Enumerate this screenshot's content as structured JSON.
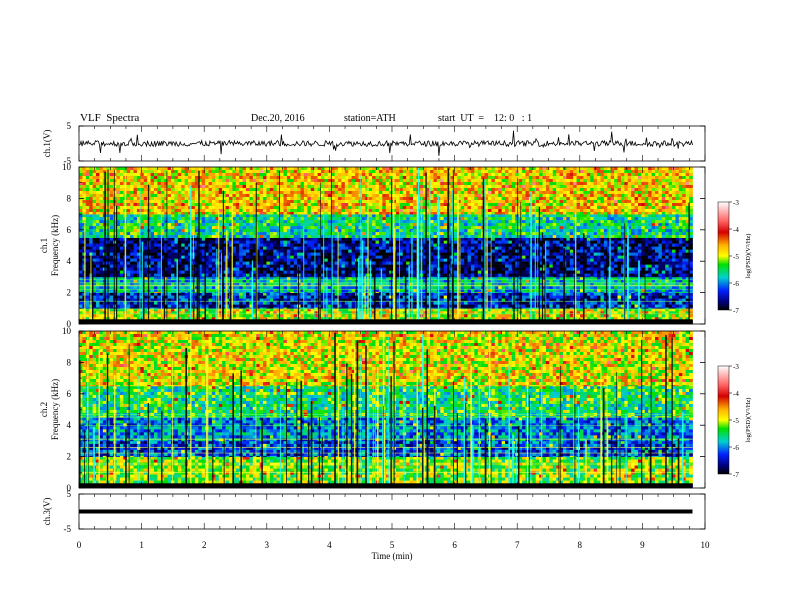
{
  "header": {
    "title": "VLF  Spectra",
    "date": "Dec.20, 2016",
    "station": "station=ATH",
    "start": "start  UT  =    12: 0   : 1"
  },
  "chart_data": [
    {
      "type": "line",
      "panel": "ch1-waveform",
      "ylabel": "ch.1(V)",
      "ylim": [
        -5,
        5
      ],
      "y_ticks": [
        "5",
        "-5"
      ],
      "baseline": 0,
      "xlim": [
        0,
        10
      ],
      "data_end_min": 9.8
    },
    {
      "type": "heatmap",
      "panel": "ch1-spectrogram",
      "ylabel": "ch.1\nFrequency (kHz)",
      "ylabel_lines": [
        "ch.1",
        "Frequency (kHz)"
      ],
      "ylim": [
        0,
        10
      ],
      "y_ticks": [
        "0",
        "2",
        "4",
        "6",
        "8",
        "10"
      ],
      "xlim": [
        0,
        10
      ],
      "data_end_min": 9.8,
      "colorbar": {
        "label": "log(PSD)(V²/Hz)",
        "range": [
          -7,
          -3
        ],
        "ticks": [
          "-3",
          "-4",
          "-5",
          "-6",
          "-7"
        ]
      },
      "bands_kHz": [
        {
          "from": 0,
          "to": 0.3,
          "level": -7.0
        },
        {
          "from": 0.3,
          "to": 1.0,
          "level": -5.0
        },
        {
          "from": 1.0,
          "to": 2.0,
          "level": -6.4
        },
        {
          "from": 2.0,
          "to": 3.0,
          "level": -5.8
        },
        {
          "from": 3.0,
          "to": 5.5,
          "level": -6.6
        },
        {
          "from": 5.5,
          "to": 7.0,
          "level": -5.6
        },
        {
          "from": 7.0,
          "to": 10.0,
          "level": -4.8
        }
      ]
    },
    {
      "type": "heatmap",
      "panel": "ch2-spectrogram",
      "ylabel": "ch.2\nFrequency (kHz)",
      "ylabel_lines": [
        "ch.2",
        "Frequency (kHz)"
      ],
      "ylim": [
        0,
        10
      ],
      "y_ticks": [
        "0",
        "2",
        "4",
        "6",
        "8",
        "10"
      ],
      "xlim": [
        0,
        10
      ],
      "data_end_min": 9.8,
      "colorbar": {
        "label": "log(PSD)(V²/Hz)",
        "range": [
          -7,
          -3
        ],
        "ticks": [
          "-3",
          "-4",
          "-5",
          "-6",
          "-7"
        ]
      },
      "bands_kHz": [
        {
          "from": 0,
          "to": 0.3,
          "level": -7.0
        },
        {
          "from": 0.3,
          "to": 2.0,
          "level": -5.2
        },
        {
          "from": 2.0,
          "to": 3.0,
          "level": -6.2
        },
        {
          "from": 3.0,
          "to": 4.5,
          "level": -6.0
        },
        {
          "from": 4.5,
          "to": 6.5,
          "level": -5.5
        },
        {
          "from": 6.5,
          "to": 10.0,
          "level": -4.9
        }
      ]
    },
    {
      "type": "line",
      "panel": "ch3-waveform",
      "ylabel": "ch.3(V)",
      "ylim": [
        -5,
        5
      ],
      "y_ticks": [
        "5",
        "-5"
      ],
      "baseline": 0,
      "xlim": [
        0,
        10
      ],
      "data_end_min": 9.8
    }
  ],
  "xaxis": {
    "label": "Time  (min)",
    "ticks": [
      "0",
      "1",
      "2",
      "3",
      "4",
      "5",
      "6",
      "7",
      "8",
      "9",
      "10"
    ]
  }
}
